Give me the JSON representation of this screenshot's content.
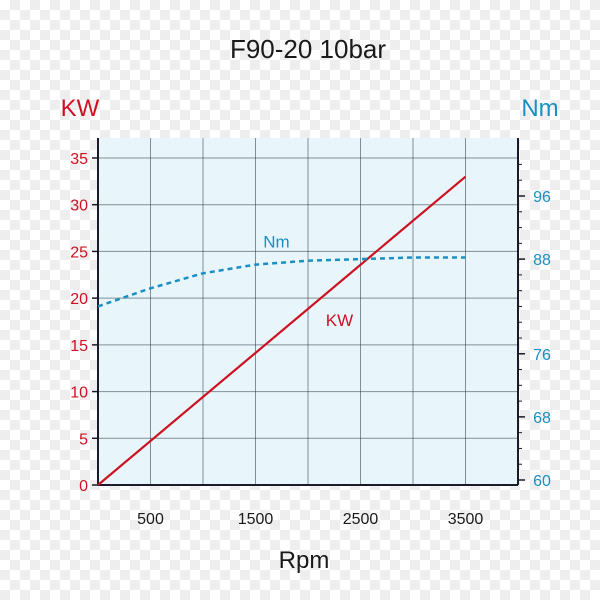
{
  "chart_data": {
    "type": "line",
    "title": "F90-20 10bar",
    "xlabel": "Rpm",
    "ylabel_left": "KW",
    "ylabel_right": "Nm",
    "xlim": [
      0,
      4000
    ],
    "ylim_left": [
      0,
      35
    ],
    "ylim_right": [
      60,
      104
    ],
    "grid": true,
    "x_ticks": [
      "500",
      "1500",
      "2500",
      "3500"
    ],
    "x_tick_values": [
      500,
      1500,
      2500,
      3500
    ],
    "y_left_ticks": [
      "0",
      "5",
      "10",
      "15",
      "20",
      "25",
      "30",
      "35"
    ],
    "y_left_tick_values": [
      0,
      5,
      10,
      15,
      20,
      25,
      30,
      35
    ],
    "y_right_ticks": [
      "60",
      "68",
      "76",
      "88",
      "96"
    ],
    "y_right_tick_values": [
      60,
      68,
      76,
      88,
      96
    ],
    "series": [
      {
        "name": "KW",
        "axis": "left",
        "color": "#cc1122",
        "style": "solid",
        "x": [
          0,
          3500
        ],
        "values": [
          0,
          33
        ]
      },
      {
        "name": "Nm",
        "axis": "right",
        "color": "#1a8fc4",
        "style": "dashed",
        "x": [
          0,
          500,
          1000,
          1500,
          2000,
          2500,
          3000,
          3500
        ],
        "values": [
          82,
          84.3,
          86.2,
          87.3,
          87.8,
          88.0,
          88.2,
          88.2
        ]
      }
    ],
    "annotations": [
      {
        "text": "Nm",
        "series": "Nm",
        "x": 1700,
        "y": 89.5
      },
      {
        "text": "KW",
        "series": "KW",
        "x": 2300,
        "y": 17
      }
    ]
  }
}
